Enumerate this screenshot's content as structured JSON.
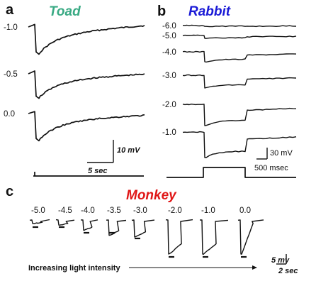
{
  "colors": {
    "toad": "#3aaa84",
    "rabbit": "#1a1ad6",
    "monkey": "#e01616",
    "trace": "#111111"
  },
  "panels": {
    "a": {
      "letter": "a",
      "title": "Toad"
    },
    "b": {
      "letter": "b",
      "title": "Rabbit"
    },
    "c": {
      "letter": "c",
      "title": "Monkey"
    }
  },
  "scalebars": {
    "a": {
      "v": "10 mV",
      "h": "5 sec"
    },
    "b": {
      "v": "30 mV",
      "h": "500 msec"
    },
    "c": {
      "v": "5 mv",
      "h": "2 sec"
    }
  },
  "footer": {
    "caption": "Increasing light intensity"
  },
  "chart_data": [
    {
      "type": "line",
      "panel": "a",
      "title": "Toad",
      "series": [
        {
          "name": "-1.0",
          "values": [
            0,
            -0.45,
            1.0,
            0.35,
            0.35,
            0.6,
            0.9
          ]
        },
        {
          "name": "-0.5",
          "values": [
            0,
            -0.5,
            0.9,
            0.3,
            0.35,
            0.5,
            0.55
          ]
        },
        {
          "name": "0.0",
          "values": [
            0,
            -0.35,
            1.0,
            0.55,
            0.45,
            0.45,
            0.45
          ]
        }
      ]
    },
    {
      "type": "line",
      "panel": "b",
      "title": "Rabbit",
      "series": [
        {
          "name": "-6.0",
          "values": [
            0.03,
            0.05
          ]
        },
        {
          "name": "-5.0",
          "values": [
            0.1,
            0.1
          ]
        },
        {
          "name": "-4.0",
          "values": [
            0.35,
            0.25
          ]
        },
        {
          "name": "-3.0",
          "values": [
            0.45,
            0.3
          ]
        },
        {
          "name": "-2.0",
          "values": [
            0.75,
            0.45
          ]
        },
        {
          "name": "-1.0",
          "values": [
            0.9,
            0.55
          ]
        }
      ]
    },
    {
      "type": "line",
      "panel": "c",
      "title": "Monkey",
      "series": [
        {
          "name": "-5.0",
          "values": [
            0.1
          ]
        },
        {
          "name": "-4.5",
          "values": [
            0.15
          ]
        },
        {
          "name": "-4.0",
          "values": [
            0.3
          ]
        },
        {
          "name": "-3.5",
          "values": [
            0.45
          ]
        },
        {
          "name": "-3.0",
          "values": [
            0.5
          ]
        },
        {
          "name": "-2.0",
          "values": [
            1.0
          ]
        },
        {
          "name": "-1.0",
          "values": [
            1.0
          ]
        },
        {
          "name": "0.0",
          "values": [
            1.0
          ]
        }
      ]
    }
  ]
}
